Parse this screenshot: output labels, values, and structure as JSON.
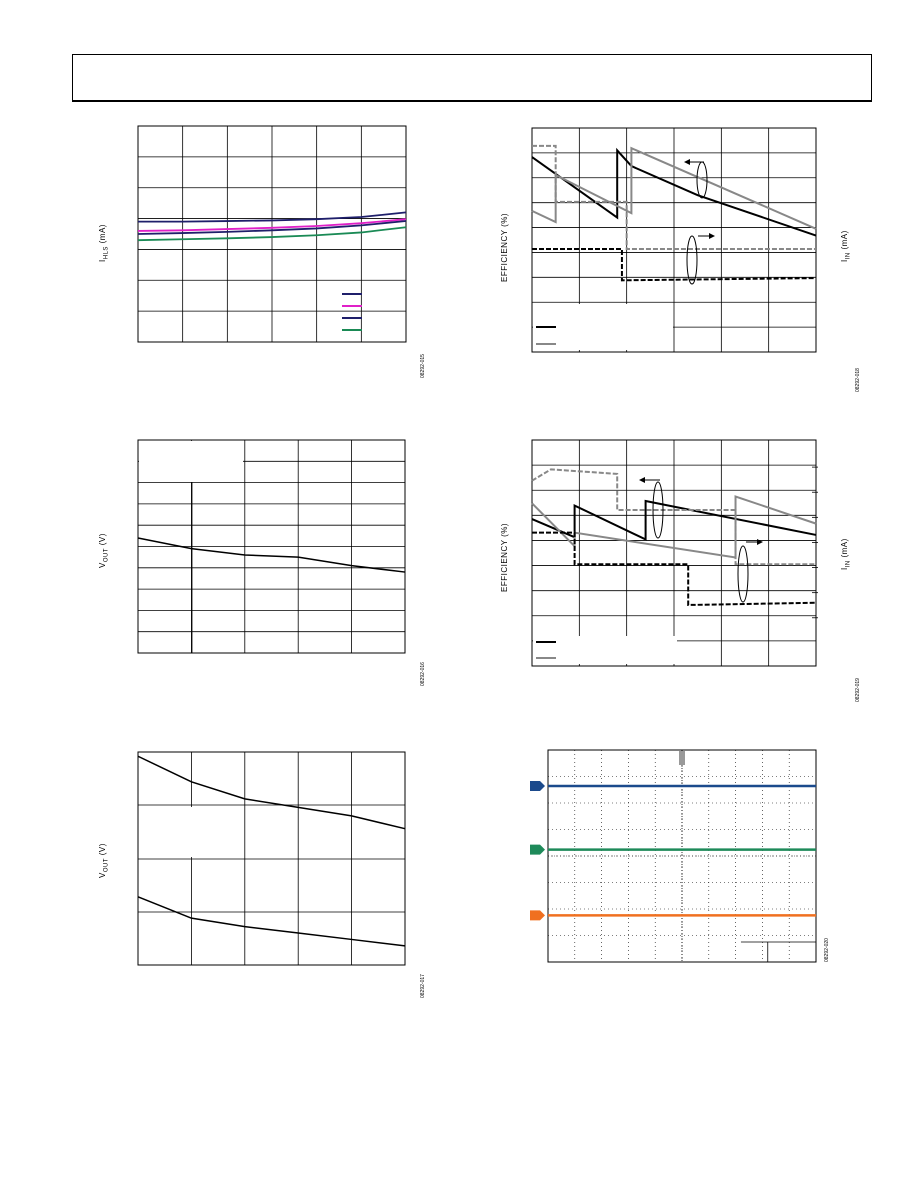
{
  "page": {
    "header": ""
  },
  "figures": [
    {
      "ylabel_main": "I",
      "ylabel_sub": "HLS",
      "ylabel_unit": " (mA)",
      "fig_id": "08292-015"
    },
    {
      "ylabel": "EFFICIENCY (%)",
      "ylabel_right_main": "I",
      "ylabel_right_sub": "IN",
      "ylabel_right_unit": " (mA)",
      "fig_id": "08292-018"
    },
    {
      "ylabel_main": "V",
      "ylabel_sub": "OUT",
      "ylabel_unit": " (V)",
      "fig_id": "08292-016"
    },
    {
      "ylabel": "EFFICIENCY (%)",
      "ylabel_right_main": "I",
      "ylabel_right_sub": "IN",
      "ylabel_right_unit": " (mA)",
      "fig_id": "08292-019"
    },
    {
      "ylabel_main": "V",
      "ylabel_sub": "OUT",
      "ylabel_unit": " (V)",
      "fig_id": "08292-017"
    },
    {
      "fig_id": "08292-020"
    }
  ],
  "colors": {
    "navy": "#1f1f6b",
    "magenta": "#e020c8",
    "green": "#1a8a55",
    "scope_blue": "#1b4a8c",
    "scope_green": "#1e8a5a",
    "scope_orange": "#f07020",
    "gray": "#888888",
    "black": "#000000"
  },
  "chart_data": [
    {
      "type": "line",
      "x": [
        0,
        1,
        2,
        3,
        4,
        5,
        6
      ],
      "ylim": [
        0,
        7
      ],
      "series": [
        {
          "color": "#1f1f6b",
          "values": [
            3.9,
            3.9,
            3.92,
            3.94,
            3.98,
            4.05,
            4.2
          ]
        },
        {
          "color": "#e020c8",
          "values": [
            3.6,
            3.62,
            3.66,
            3.7,
            3.76,
            3.85,
            3.98
          ]
        },
        {
          "color": "#1f1f6b",
          "values": [
            3.5,
            3.53,
            3.57,
            3.62,
            3.68,
            3.78,
            3.92
          ]
        },
        {
          "color": "#1a8a55",
          "values": [
            3.3,
            3.33,
            3.36,
            3.4,
            3.46,
            3.55,
            3.72
          ]
        }
      ]
    },
    {
      "type": "line",
      "ylim": [
        0,
        10
      ],
      "series": [
        {
          "color": "#000000",
          "style": "solid",
          "points": [
            [
              0,
              8.7
            ],
            [
              1.8,
              6.0
            ],
            [
              1.8,
              9.0
            ],
            [
              2.1,
              8.3
            ],
            [
              3.5,
              7.0
            ],
            [
              6,
              5.2
            ]
          ]
        },
        {
          "color": "#888888",
          "style": "solid",
          "points": [
            [
              0,
              6.3
            ],
            [
              0.5,
              5.8
            ],
            [
              0.5,
              7.9
            ],
            [
              2.1,
              6.2
            ],
            [
              2.1,
              9.1
            ],
            [
              6,
              5.5
            ]
          ]
        },
        {
          "color": "#888888",
          "style": "dashed",
          "points": [
            [
              0,
              9.2
            ],
            [
              0.5,
              9.2
            ],
            [
              0.5,
              6.7
            ],
            [
              2.0,
              6.7
            ],
            [
              2.0,
              4.6
            ],
            [
              6,
              4.6
            ]
          ]
        },
        {
          "color": "#000000",
          "style": "dashed",
          "points": [
            [
              0,
              4.6
            ],
            [
              1.9,
              4.6
            ],
            [
              1.9,
              3.2
            ],
            [
              6,
              3.3
            ]
          ]
        }
      ]
    },
    {
      "type": "line",
      "x": [
        0,
        1,
        2,
        3,
        4,
        5
      ],
      "ylim": [
        0,
        10
      ],
      "series": [
        {
          "color": "#000000",
          "values": [
            5.4,
            4.9,
            4.6,
            4.5,
            4.1,
            3.8
          ]
        }
      ]
    },
    {
      "type": "line",
      "ylim": [
        0,
        10
      ],
      "series": [
        {
          "color": "#000000",
          "style": "solid",
          "points": [
            [
              0,
              6.5
            ],
            [
              0.9,
              5.7
            ],
            [
              0.9,
              7.1
            ],
            [
              2.4,
              5.6
            ],
            [
              2.4,
              7.3
            ],
            [
              6,
              5.8
            ]
          ]
        },
        {
          "color": "#888888",
          "style": "solid",
          "points": [
            [
              0,
              7.2
            ],
            [
              0.9,
              5.3
            ],
            [
              0.9,
              5.9
            ],
            [
              4.3,
              4.8
            ],
            [
              4.3,
              7.5
            ],
            [
              6,
              6.3
            ]
          ]
        },
        {
          "color": "#888888",
          "style": "dashed",
          "points": [
            [
              0,
              8.2
            ],
            [
              0.4,
              8.7
            ],
            [
              1.8,
              8.5
            ],
            [
              1.8,
              6.9
            ],
            [
              4.3,
              6.9
            ],
            [
              4.3,
              4.5
            ],
            [
              6,
              4.5
            ]
          ]
        },
        {
          "color": "#000000",
          "style": "dashed",
          "points": [
            [
              0,
              5.9
            ],
            [
              0.9,
              5.9
            ],
            [
              0.9,
              4.5
            ],
            [
              3.3,
              4.5
            ],
            [
              3.3,
              2.7
            ],
            [
              6,
              2.8
            ]
          ]
        }
      ]
    },
    {
      "type": "line",
      "x": [
        0,
        1,
        2,
        3,
        4,
        5
      ],
      "ylim": [
        0,
        10
      ],
      "series": [
        {
          "color": "#000000",
          "values": [
            9.8,
            8.6,
            7.8,
            7.4,
            7.0,
            6.4
          ]
        },
        {
          "color": "#000000",
          "values": [
            3.2,
            2.2,
            1.8,
            1.5,
            1.2,
            0.9
          ]
        }
      ]
    },
    {
      "type": "line",
      "ylim": [
        0,
        10
      ],
      "series": [
        {
          "color": "#1b4a8c",
          "values": [
            8.3,
            8.3
          ]
        },
        {
          "color": "#1e8a5a",
          "values": [
            5.3,
            5.3
          ]
        },
        {
          "color": "#f07020",
          "values": [
            2.2,
            2.2
          ]
        }
      ]
    }
  ]
}
